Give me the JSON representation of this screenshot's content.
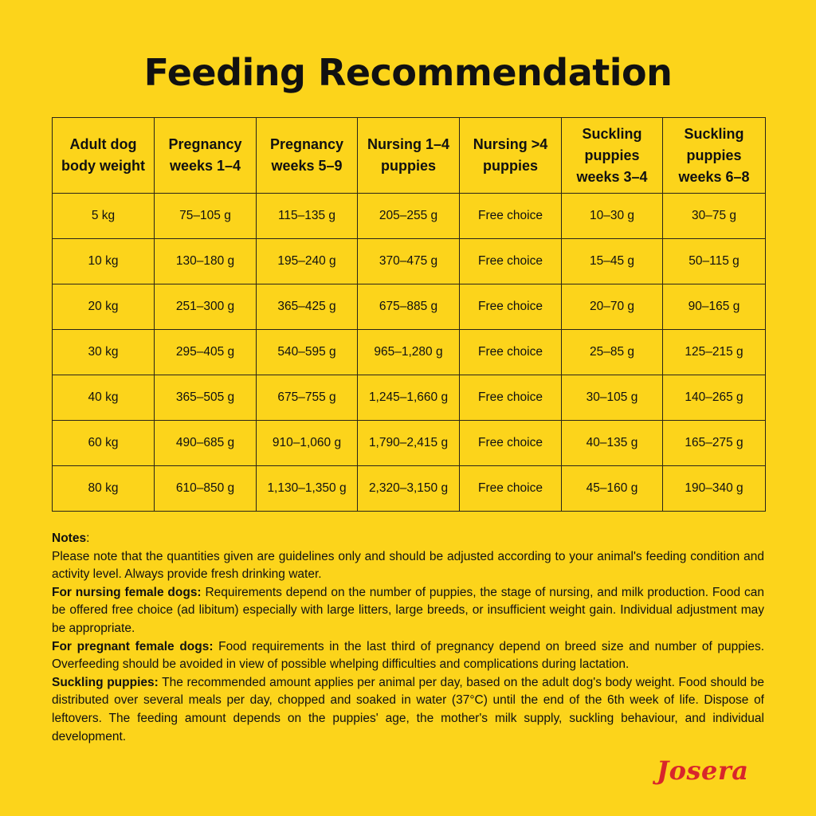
{
  "title": "Feeding Recommendation",
  "colors": {
    "background": "#fcd41b",
    "text": "#111111",
    "border": "#2a2418",
    "logo": "#d8262b"
  },
  "table": {
    "headers": [
      "Adult dog body weight",
      "Pregnancy weeks 1–4",
      "Pregnancy weeks 5–9",
      "Nursing 1–4 puppies",
      "Nursing >4 puppies",
      "Suckling puppies weeks 3–4",
      "Suckling puppies weeks 6–8"
    ],
    "rows": [
      [
        "5 kg",
        "75–105 g",
        "115–135 g",
        "205–255 g",
        "Free choice",
        "10–30 g",
        "30–75 g"
      ],
      [
        "10 kg",
        "130–180 g",
        "195–240 g",
        "370–475 g",
        "Free choice",
        "15–45 g",
        "50–115 g"
      ],
      [
        "20 kg",
        "251–300 g",
        "365–425 g",
        "675–885 g",
        "Free choice",
        "20–70 g",
        "90–165 g"
      ],
      [
        "30 kg",
        "295–405 g",
        "540–595 g",
        "965–1,280 g",
        "Free choice",
        "25–85 g",
        "125–215 g"
      ],
      [
        "40 kg",
        "365–505 g",
        "675–755 g",
        "1,245–1,660 g",
        "Free choice",
        "30–105 g",
        "140–265 g"
      ],
      [
        "60 kg",
        "490–685 g",
        "910–1,060 g",
        "1,790–2,415 g",
        "Free choice",
        "40–135 g",
        "165–275 g"
      ],
      [
        "80 kg",
        "610–850 g",
        "1,130–1,350 g",
        "2,320–3,150 g",
        "Free choice",
        "45–160 g",
        "190–340 g"
      ]
    ]
  },
  "notes": {
    "heading": "Notes",
    "heading_suffix": ":",
    "general": "Please note that the quantities given are guidelines only and should be adjusted according to your animal's feeding condition and activity level. Always provide fresh drinking water.",
    "nursing_label": "For nursing female dogs:",
    "nursing_text": " Requirements depend on the number of puppies, the stage of nursing, and milk production. Food can be offered free choice (ad libitum) especially with large litters, large breeds, or insufficient weight gain. Individual adjustment may be appropriate.",
    "pregnant_label": "For pregnant female dogs:",
    "pregnant_text": " Food requirements in the last third of pregnancy depend on breed size and number of puppies. Overfeeding should be avoided in view of possible whelping difficulties and complications during lactation.",
    "suckling_label": "Suckling puppies:",
    "suckling_text": " The recommended amount applies per animal per day, based on the adult dog's body weight. Food should be distributed over several meals per day, chopped and soaked in water (37°C) until the end of the 6th week of life. Dispose of leftovers. The feeding amount depends on the puppies' age, the mother's milk supply, suckling behaviour, and individual development."
  },
  "logo": {
    "text": "Josera"
  }
}
